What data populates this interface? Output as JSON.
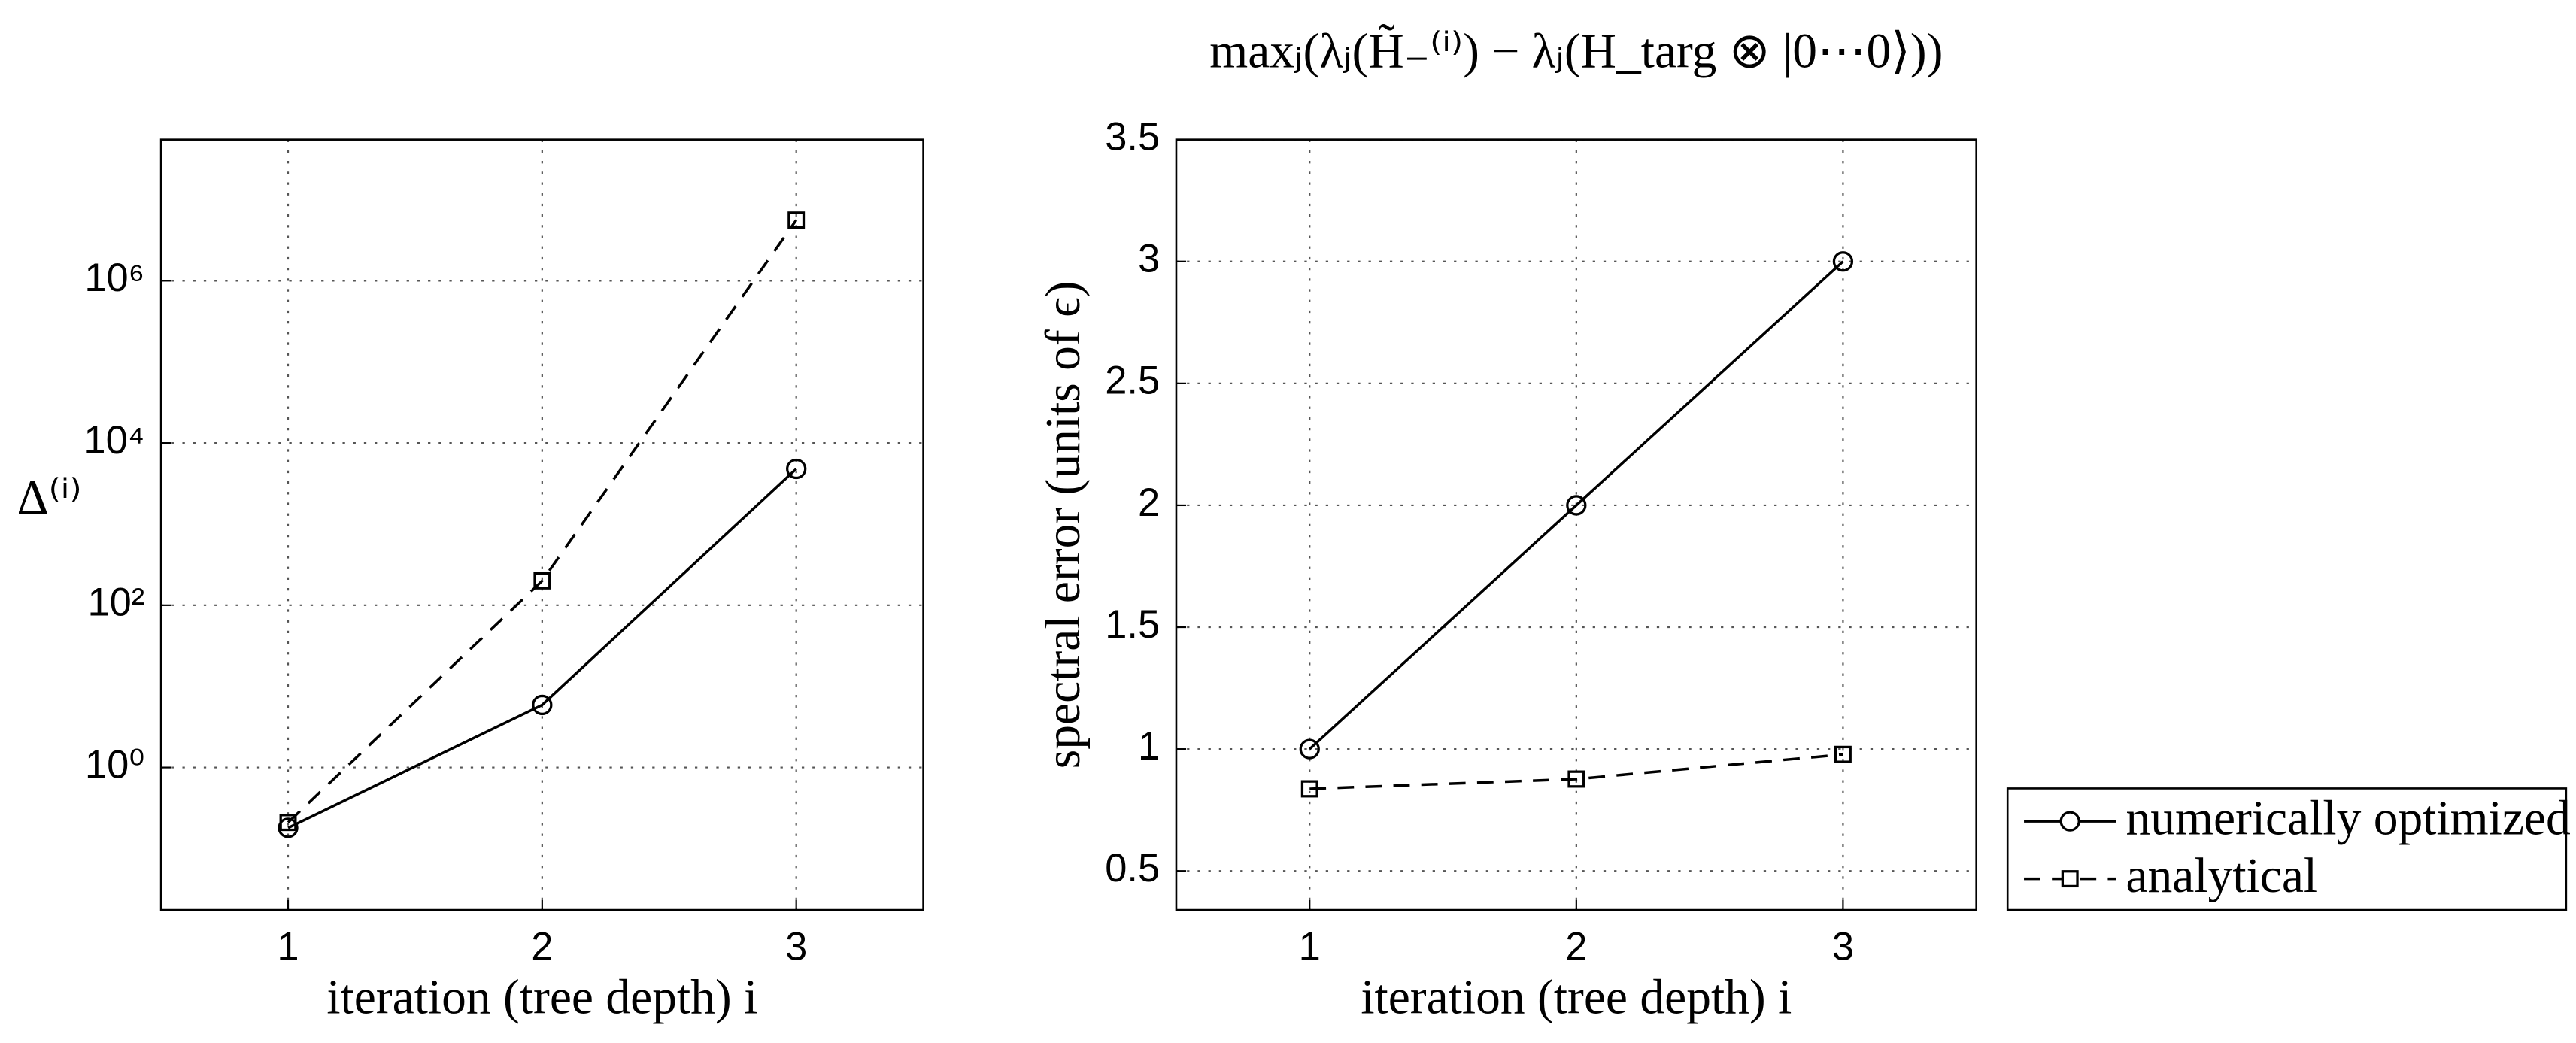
{
  "chart_data": [
    {
      "type": "line",
      "ylabel": "Δ⁽ⁱ⁾",
      "xlabel": "iteration (tree depth) i",
      "x": [
        1,
        2,
        3
      ],
      "xlim": [
        0.5,
        3.5
      ],
      "xticks": [
        1,
        2,
        3
      ],
      "ylog": true,
      "ylim": [
        0.0175,
        55000000
      ],
      "yticks": [
        {
          "value": 1,
          "label": "10⁰"
        },
        {
          "value": 100,
          "label": "10²"
        },
        {
          "value": 10000,
          "label": "10⁴"
        },
        {
          "value": 1000000,
          "label": "10⁶"
        }
      ],
      "grid": true,
      "series": [
        {
          "color": "#000000",
          "linestyle": "solid",
          "marker": "circle",
          "values": [
            0.18,
            5.9,
            4800
          ]
        },
        {
          "color": "#000000",
          "linestyle": "dashed",
          "marker": "square",
          "values": [
            0.21,
            200,
            5600000
          ]
        }
      ]
    },
    {
      "type": "line",
      "title": "maxⱼ(λⱼ(H̃₋⁽ⁱ⁾) − λⱼ(H_targ ⊗ |0⋯0⟩))",
      "ylabel": "spectral error (units of ϵ)",
      "xlabel": "iteration (tree depth) i",
      "x": [
        1,
        2,
        3
      ],
      "xlim": [
        0.5,
        3.5
      ],
      "xticks": [
        1,
        2,
        3
      ],
      "ylog": false,
      "ylim": [
        0.34,
        3.5
      ],
      "yticks": [
        0.5,
        1,
        1.5,
        2,
        2.5,
        3,
        3.5
      ],
      "grid": true,
      "legend": "outside-lower-right",
      "series": [
        {
          "name": "numerically optimized",
          "color": "#000000",
          "linestyle": "solid",
          "marker": "circle",
          "values": [
            1,
            2,
            3
          ]
        },
        {
          "name": "analytical",
          "color": "#000000",
          "linestyle": "dashed",
          "marker": "square",
          "values": [
            0.837,
            0.877,
            0.978
          ]
        }
      ]
    }
  ]
}
